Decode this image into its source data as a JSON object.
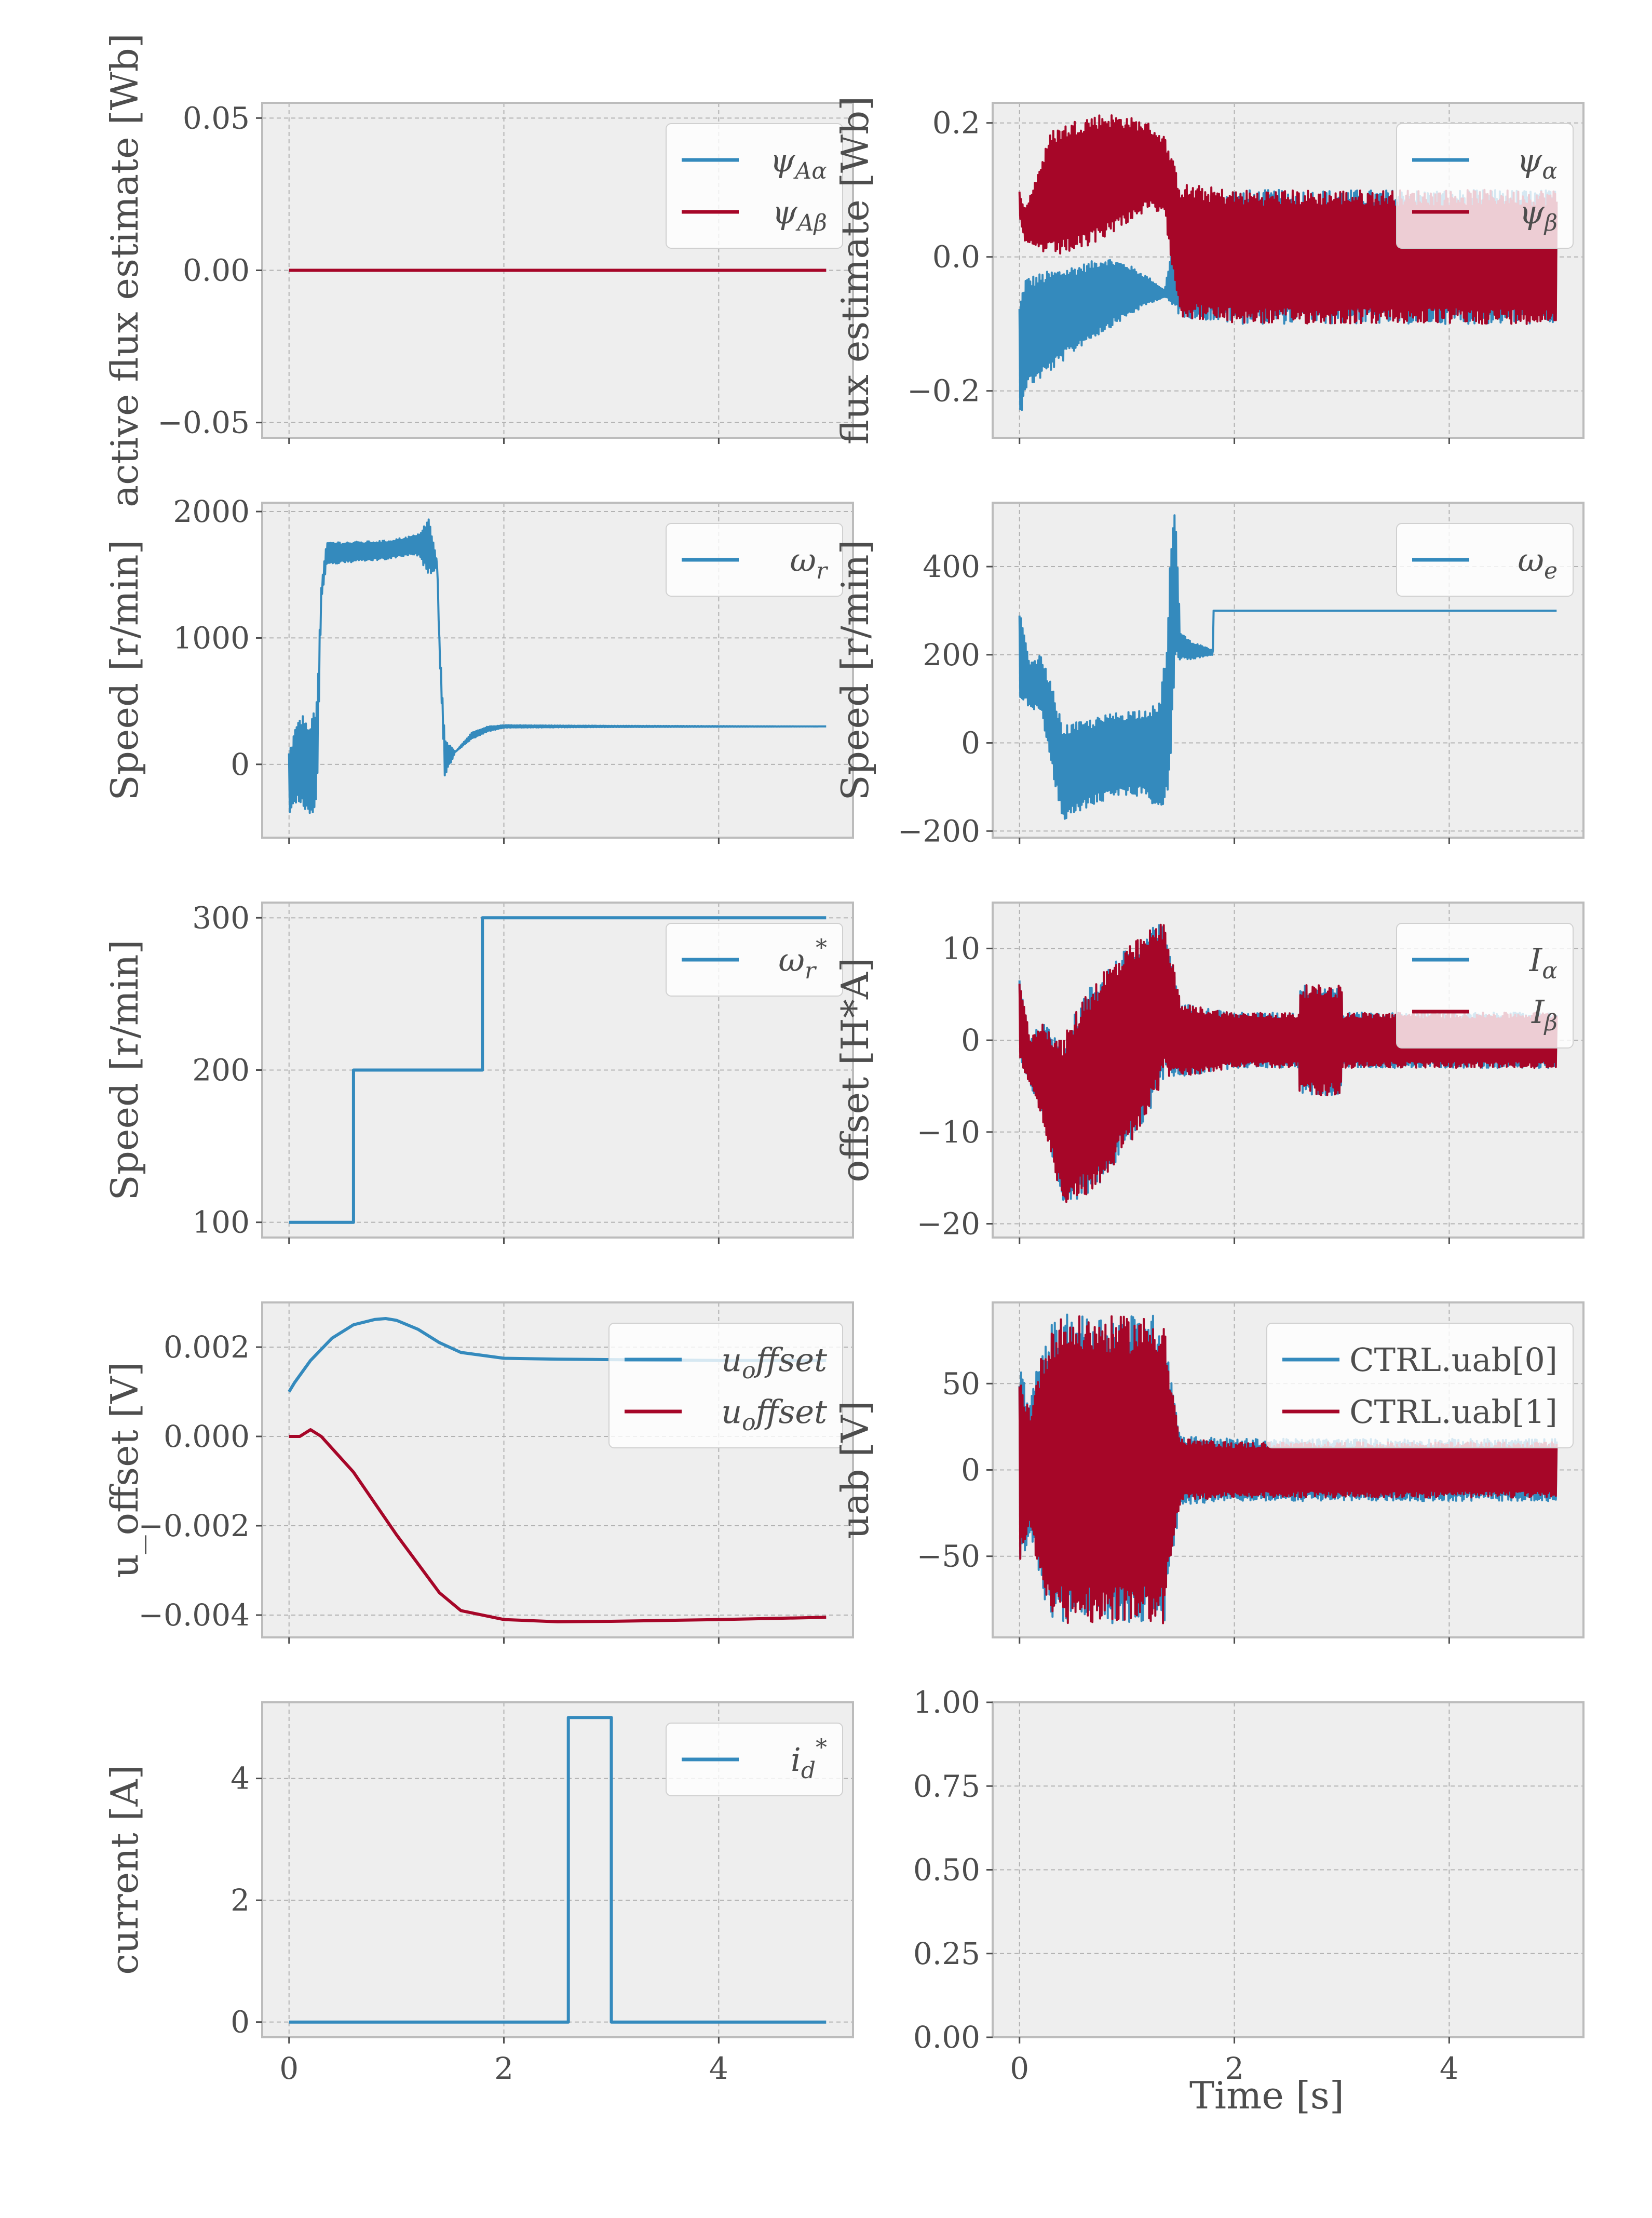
{
  "figure": {
    "xlabel_bottom": "Time [s]"
  },
  "colors": {
    "blue": "#348ABD",
    "red": "#A60628",
    "axes_bg": "#EEEEEE",
    "grid": "#B2B2B2",
    "spine": "#BCBCBC",
    "text": "#4d4d4d"
  },
  "chart_data": [
    {
      "id": "p00",
      "type": "line",
      "row": 0,
      "col": 0,
      "ylabel": "active flux estimate [Wb]",
      "xlim": [
        -0.25,
        5.25
      ],
      "ylim": [
        -0.055,
        0.055
      ],
      "xticks": [
        0,
        2,
        4
      ],
      "xticklabels": [
        "",
        "",
        ""
      ],
      "yticks": [
        -0.05,
        0.0,
        0.05
      ],
      "yticklabels": [
        "−0.05",
        "0.00",
        "0.05"
      ],
      "legend": "upper right",
      "series": [
        {
          "name": "ψAα",
          "sub": "Aα",
          "color": "#348ABD",
          "x": [
            0,
            5
          ],
          "y": [
            0,
            0
          ]
        },
        {
          "name": "ψAβ",
          "sub": "Aβ",
          "color": "#A60628",
          "x": [
            0,
            5
          ],
          "y": [
            0,
            0
          ]
        }
      ]
    },
    {
      "id": "p01",
      "type": "line",
      "row": 0,
      "col": 1,
      "ylabel": "flux estimate [Wb]",
      "xlim": [
        -0.25,
        5.25
      ],
      "ylim": [
        -0.27,
        0.23
      ],
      "xticks": [
        0,
        2,
        4
      ],
      "xticklabels": [
        "",
        "",
        ""
      ],
      "yticks": [
        -0.2,
        0.0,
        0.2
      ],
      "yticklabels": [
        "−0.2",
        "0.0",
        "0.2"
      ],
      "legend": "upper right",
      "series": [
        {
          "name": "ψα",
          "sub": "α",
          "color": "#348ABD",
          "band_x": [
            0,
            0.05,
            0.3,
            0.6,
            0.8,
            1.0,
            1.2,
            1.35,
            1.5,
            2.0,
            3.0,
            4.0,
            5.0
          ],
          "band_upper": [
            -0.07,
            -0.03,
            -0.02,
            -0.01,
            0.0,
            -0.01,
            -0.03,
            -0.05,
            0.09,
            0.1,
            0.1,
            0.1,
            0.1
          ],
          "band_lower": [
            -0.25,
            -0.2,
            -0.17,
            -0.13,
            -0.11,
            -0.09,
            -0.07,
            -0.06,
            -0.09,
            -0.1,
            -0.1,
            -0.1,
            -0.1
          ]
        },
        {
          "name": "ψβ",
          "sub": "β",
          "color": "#A60628",
          "band_x": [
            0,
            0.05,
            0.3,
            0.6,
            0.8,
            1.0,
            1.2,
            1.35,
            1.5,
            2.0,
            3.0,
            4.0,
            5.0
          ],
          "band_upper": [
            0.1,
            0.07,
            0.19,
            0.21,
            0.215,
            0.21,
            0.2,
            0.18,
            0.11,
            0.1,
            0.1,
            0.1,
            0.1
          ],
          "band_lower": [
            0.06,
            0.02,
            0.0,
            0.01,
            0.03,
            0.05,
            0.07,
            0.06,
            -0.09,
            -0.1,
            -0.1,
            -0.1,
            -0.1
          ]
        }
      ]
    },
    {
      "id": "p10",
      "type": "line",
      "row": 1,
      "col": 0,
      "ylabel": "Speed [r/min]",
      "xlim": [
        -0.25,
        5.25
      ],
      "ylim": [
        -580,
        2070
      ],
      "xticks": [
        0,
        2,
        4
      ],
      "xticklabels": [
        "",
        "",
        ""
      ],
      "yticks": [
        0,
        1000,
        2000
      ],
      "yticklabels": [
        "0",
        "1000",
        "2000"
      ],
      "legend": "upper right",
      "series": [
        {
          "name": "ωr",
          "sub": "r",
          "color": "#348ABD",
          "band_x": [
            0,
            0.1,
            0.2,
            0.26,
            0.3,
            0.35,
            0.6,
            0.9,
            1.1,
            1.2,
            1.3,
            1.38,
            1.4,
            1.45,
            1.55,
            1.7,
            1.85,
            2.0,
            3.0,
            5.0
          ],
          "band_upper": [
            100,
            400,
            350,
            500,
            1400,
            1760,
            1760,
            1770,
            1800,
            1820,
            1950,
            1600,
            1000,
            200,
            100,
            250,
            300,
            310,
            305,
            300
          ],
          "band_lower": [
            -400,
            -300,
            -450,
            -300,
            1300,
            1580,
            1600,
            1620,
            1650,
            1650,
            1500,
            1550,
            900,
            -100,
            100,
            200,
            260,
            290,
            295,
            300
          ]
        }
      ]
    },
    {
      "id": "p11",
      "type": "line",
      "row": 1,
      "col": 1,
      "ylabel": "Speed [r/min]",
      "xlim": [
        -0.25,
        5.25
      ],
      "ylim": [
        -215,
        545
      ],
      "xticks": [
        0,
        2,
        4
      ],
      "xticklabels": [
        "",
        "",
        ""
      ],
      "yticks": [
        -200,
        0,
        200,
        400
      ],
      "yticklabels": [
        "−200",
        "0",
        "200",
        "400"
      ],
      "legend": "upper right",
      "series": [
        {
          "name": "ωe",
          "sub": "e",
          "color": "#348ABD",
          "band_x": [
            0,
            0.1,
            0.2,
            0.3,
            0.4,
            0.6,
            0.9,
            1.2,
            1.3,
            1.38,
            1.4,
            1.45,
            1.5,
            1.6,
            1.8,
            1.8,
            2.0,
            3.0,
            5.0
          ],
          "band_upper": [
            300,
            180,
            200,
            130,
            40,
            50,
            70,
            80,
            90,
            250,
            420,
            540,
            250,
            230,
            210,
            300,
            300,
            300,
            300
          ],
          "band_lower": [
            100,
            80,
            70,
            -60,
            -180,
            -150,
            -120,
            -120,
            -170,
            -110,
            -60,
            180,
            190,
            190,
            200,
            300,
            300,
            300,
            300
          ]
        }
      ]
    },
    {
      "id": "p20",
      "type": "line",
      "row": 2,
      "col": 0,
      "ylabel": "Speed [r/min]",
      "xlim": [
        -0.25,
        5.25
      ],
      "ylim": [
        90,
        310
      ],
      "xticks": [
        0,
        2,
        4
      ],
      "xticklabels": [
        "",
        "",
        ""
      ],
      "yticks": [
        100,
        200,
        300
      ],
      "yticklabels": [
        "100",
        "200",
        "300"
      ],
      "legend": "upper right",
      "series": [
        {
          "name": "ωr*",
          "sub": "r",
          "sup": "*",
          "color": "#348ABD",
          "x": [
            0,
            0.6,
            0.6,
            1.8,
            1.8,
            5.0
          ],
          "y": [
            100,
            100,
            200,
            200,
            300,
            300
          ]
        }
      ]
    },
    {
      "id": "p21",
      "type": "line",
      "row": 2,
      "col": 1,
      "ylabel": "offset [H*A]",
      "xlim": [
        -0.25,
        5.25
      ],
      "ylim": [
        -21.5,
        15
      ],
      "xticks": [
        0,
        2,
        4
      ],
      "xticklabels": [
        "",
        "",
        ""
      ],
      "yticks": [
        -20,
        -10,
        0,
        10
      ],
      "yticklabels": [
        "−20",
        "−10",
        "0",
        "10"
      ],
      "legend": "upper right",
      "series": [
        {
          "name": "Iα",
          "sub": "α",
          "color": "#348ABD",
          "band_x": [
            0,
            0.1,
            0.2,
            0.4,
            0.6,
            0.8,
            1.0,
            1.2,
            1.35,
            1.4,
            1.5,
            2.0,
            2.6,
            2.6,
            3.0,
            3.0,
            5.0
          ],
          "band_upper": [
            7,
            0,
            2,
            0,
            5,
            8,
            10,
            12,
            13,
            10,
            4,
            3,
            3,
            6,
            6,
            3,
            3
          ],
          "band_lower": [
            -2,
            -5,
            -8,
            -18,
            -17,
            -15,
            -12,
            -8,
            -4,
            -4,
            -4,
            -3,
            -3,
            -6,
            -6,
            -3,
            -3
          ]
        },
        {
          "name": "Iβ",
          "sub": "β",
          "color": "#A60628",
          "band_x": [
            0,
            0.1,
            0.2,
            0.4,
            0.6,
            0.8,
            1.0,
            1.2,
            1.35,
            1.4,
            1.5,
            2.0,
            2.6,
            2.6,
            3.0,
            3.0,
            5.0
          ],
          "band_upper": [
            7,
            0,
            2,
            0,
            5,
            8,
            10,
            12,
            13,
            10,
            4,
            3,
            3,
            6,
            6,
            3,
            3
          ],
          "band_lower": [
            -2,
            -5,
            -8,
            -18,
            -17,
            -15,
            -12,
            -8,
            -4,
            -4,
            -4,
            -3,
            -3,
            -6,
            -6,
            -3,
            -3
          ]
        }
      ]
    },
    {
      "id": "p30",
      "type": "line",
      "row": 3,
      "col": 0,
      "ylabel": "u_offset [V]",
      "xlim": [
        -0.25,
        5.25
      ],
      "ylim": [
        -0.0045,
        0.003
      ],
      "xticks": [
        0,
        2,
        4
      ],
      "xticklabels": [
        "",
        "",
        ""
      ],
      "yticks": [
        -0.004,
        -0.002,
        0.0,
        0.002
      ],
      "yticklabels": [
        "−0.004",
        "−0.002",
        "0.000",
        "0.002"
      ],
      "legend": "upper right",
      "series": [
        {
          "name": "uoffset",
          "sub": "o",
          "tail": "ffset",
          "color": "#348ABD",
          "x": [
            0,
            0.05,
            0.2,
            0.4,
            0.6,
            0.8,
            0.9,
            1.0,
            1.2,
            1.4,
            1.6,
            2.0,
            2.5,
            3.0,
            4.0,
            5.0
          ],
          "y": [
            0.001,
            0.0012,
            0.0017,
            0.0022,
            0.0025,
            0.00262,
            0.00264,
            0.0026,
            0.0024,
            0.0021,
            0.00188,
            0.00175,
            0.00173,
            0.00172,
            0.0017,
            0.0017
          ]
        },
        {
          "name": "uoffset",
          "sub": "o",
          "tail": "ffset",
          "color": "#A60628",
          "x": [
            0,
            0.1,
            0.2,
            0.3,
            0.6,
            1.0,
            1.4,
            1.6,
            2.0,
            2.5,
            3.0,
            4.0,
            5.0
          ],
          "y": [
            0.0,
            0.0,
            0.00015,
            0.0,
            -0.0008,
            -0.0022,
            -0.0035,
            -0.0039,
            -0.0041,
            -0.00415,
            -0.00414,
            -0.0041,
            -0.00405
          ]
        }
      ]
    },
    {
      "id": "p31",
      "type": "line",
      "row": 3,
      "col": 1,
      "ylabel": "uab [V]",
      "xlim": [
        -0.25,
        5.25
      ],
      "ylim": [
        -97,
        97
      ],
      "xticks": [
        0,
        2,
        4
      ],
      "xticklabels": [
        "",
        "",
        ""
      ],
      "yticks": [
        -50,
        0,
        50
      ],
      "yticklabels": [
        "−50",
        "0",
        "50"
      ],
      "legend": "upper right",
      "series": [
        {
          "name": "CTRL.uab[0]",
          "upright": true,
          "color": "#348ABD",
          "band_x": [
            0,
            0.1,
            0.2,
            0.3,
            0.4,
            1.35,
            1.4,
            1.5,
            2.0,
            3.0,
            5.0
          ],
          "band_upper": [
            60,
            40,
            70,
            85,
            90,
            90,
            60,
            20,
            18,
            18,
            18
          ],
          "band_lower": [
            -60,
            -40,
            -70,
            -85,
            -90,
            -90,
            -60,
            -20,
            -18,
            -18,
            -18
          ]
        },
        {
          "name": "CTRL.uab[1]",
          "upright": true,
          "color": "#A60628",
          "band_x": [
            0,
            0.1,
            0.2,
            0.3,
            0.4,
            1.35,
            1.4,
            1.5,
            2.0,
            3.0,
            5.0
          ],
          "band_upper": [
            55,
            35,
            65,
            85,
            89,
            89,
            55,
            18,
            16,
            16,
            16
          ],
          "band_lower": [
            -55,
            -35,
            -65,
            -85,
            -89,
            -89,
            -55,
            -18,
            -16,
            -16,
            -16
          ]
        }
      ]
    },
    {
      "id": "p40",
      "type": "line",
      "row": 4,
      "col": 0,
      "ylabel": "current [A]",
      "xlim": [
        -0.25,
        5.25
      ],
      "ylim": [
        -0.25,
        5.25
      ],
      "xticks": [
        0,
        2,
        4
      ],
      "xticklabels": [
        "0",
        "2",
        "4"
      ],
      "yticks": [
        0,
        2,
        4
      ],
      "yticklabels": [
        "0",
        "2",
        "4"
      ],
      "legend": "upper right",
      "series": [
        {
          "name": "id*",
          "sub": "d",
          "sup": "*",
          "color": "#348ABD",
          "x": [
            0,
            2.6,
            2.6,
            3.0,
            3.0,
            5.0
          ],
          "y": [
            0,
            0,
            5,
            5,
            0,
            0
          ]
        }
      ]
    },
    {
      "id": "p41",
      "type": "line",
      "row": 4,
      "col": 1,
      "ylabel": "",
      "xlabel": "Time [s]",
      "xlim": [
        -0.25,
        5.25
      ],
      "ylim": [
        0,
        1
      ],
      "xticks": [
        0,
        2,
        4
      ],
      "xticklabels": [
        "0",
        "2",
        "4"
      ],
      "yticks": [
        0,
        0.25,
        0.5,
        0.75,
        1.0
      ],
      "yticklabels": [
        "0.00",
        "0.25",
        "0.50",
        "0.75",
        "1.00"
      ],
      "series": []
    }
  ]
}
